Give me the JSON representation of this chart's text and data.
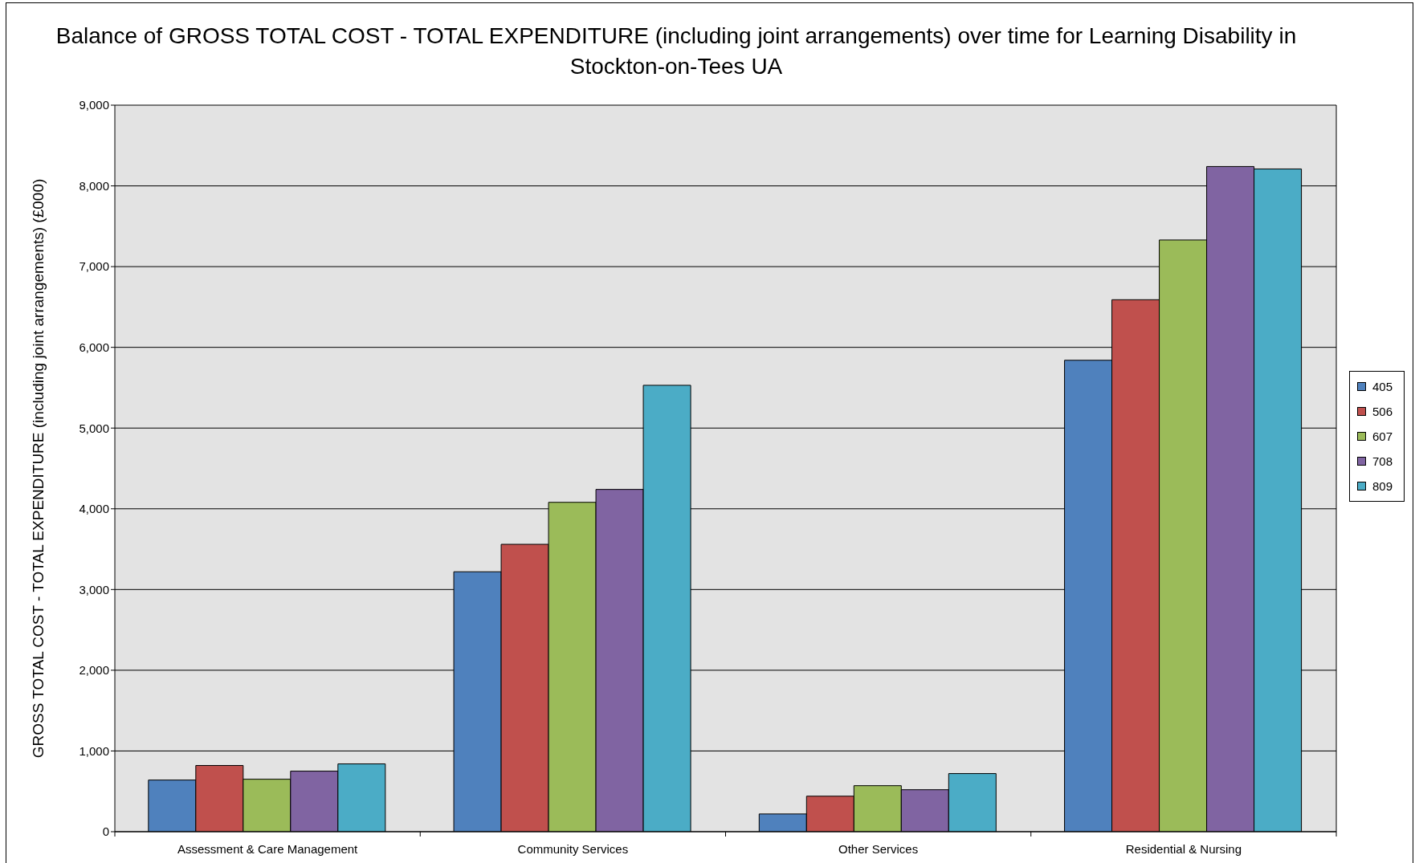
{
  "chart_data": {
    "type": "bar",
    "title": "Balance of GROSS TOTAL COST - TOTAL EXPENDITURE (including joint arrangements) over time for Learning Disability in Stockton-on-Tees UA",
    "ylabel": "GROSS TOTAL COST - TOTAL EXPENDITURE (including joint arrangements) (£000)",
    "categories": [
      "Assessment & Care Management",
      "Community Services",
      "Other Services",
      "Residential & Nursing"
    ],
    "series": [
      {
        "name": "405",
        "color": "#4f81bd",
        "values": [
          640,
          3220,
          220,
          5840
        ]
      },
      {
        "name": "506",
        "color": "#c0504d",
        "values": [
          820,
          3560,
          440,
          6590
        ]
      },
      {
        "name": "607",
        "color": "#9bbb59",
        "values": [
          650,
          4080,
          570,
          7330
        ]
      },
      {
        "name": "708",
        "color": "#8064a2",
        "values": [
          750,
          4240,
          520,
          8240
        ]
      },
      {
        "name": "809",
        "color": "#4bacc6",
        "values": [
          840,
          5530,
          720,
          8210
        ]
      }
    ],
    "ylim": [
      0,
      9000
    ],
    "yticks": [
      0,
      {
        "value": 1000,
        "label": "1,000"
      },
      {
        "value": 2000,
        "label": "2,000"
      },
      {
        "value": 3000,
        "label": "3,000"
      },
      {
        "value": 4000,
        "label": "4,000"
      },
      {
        "value": 5000,
        "label": "5,000"
      },
      {
        "value": 6000,
        "label": "6,000"
      },
      {
        "value": 7000,
        "label": "7,000"
      },
      {
        "value": 8000,
        "label": "8,000"
      },
      {
        "value": 9000,
        "label": "9,000"
      }
    ],
    "grid": "y",
    "legend": "right"
  }
}
